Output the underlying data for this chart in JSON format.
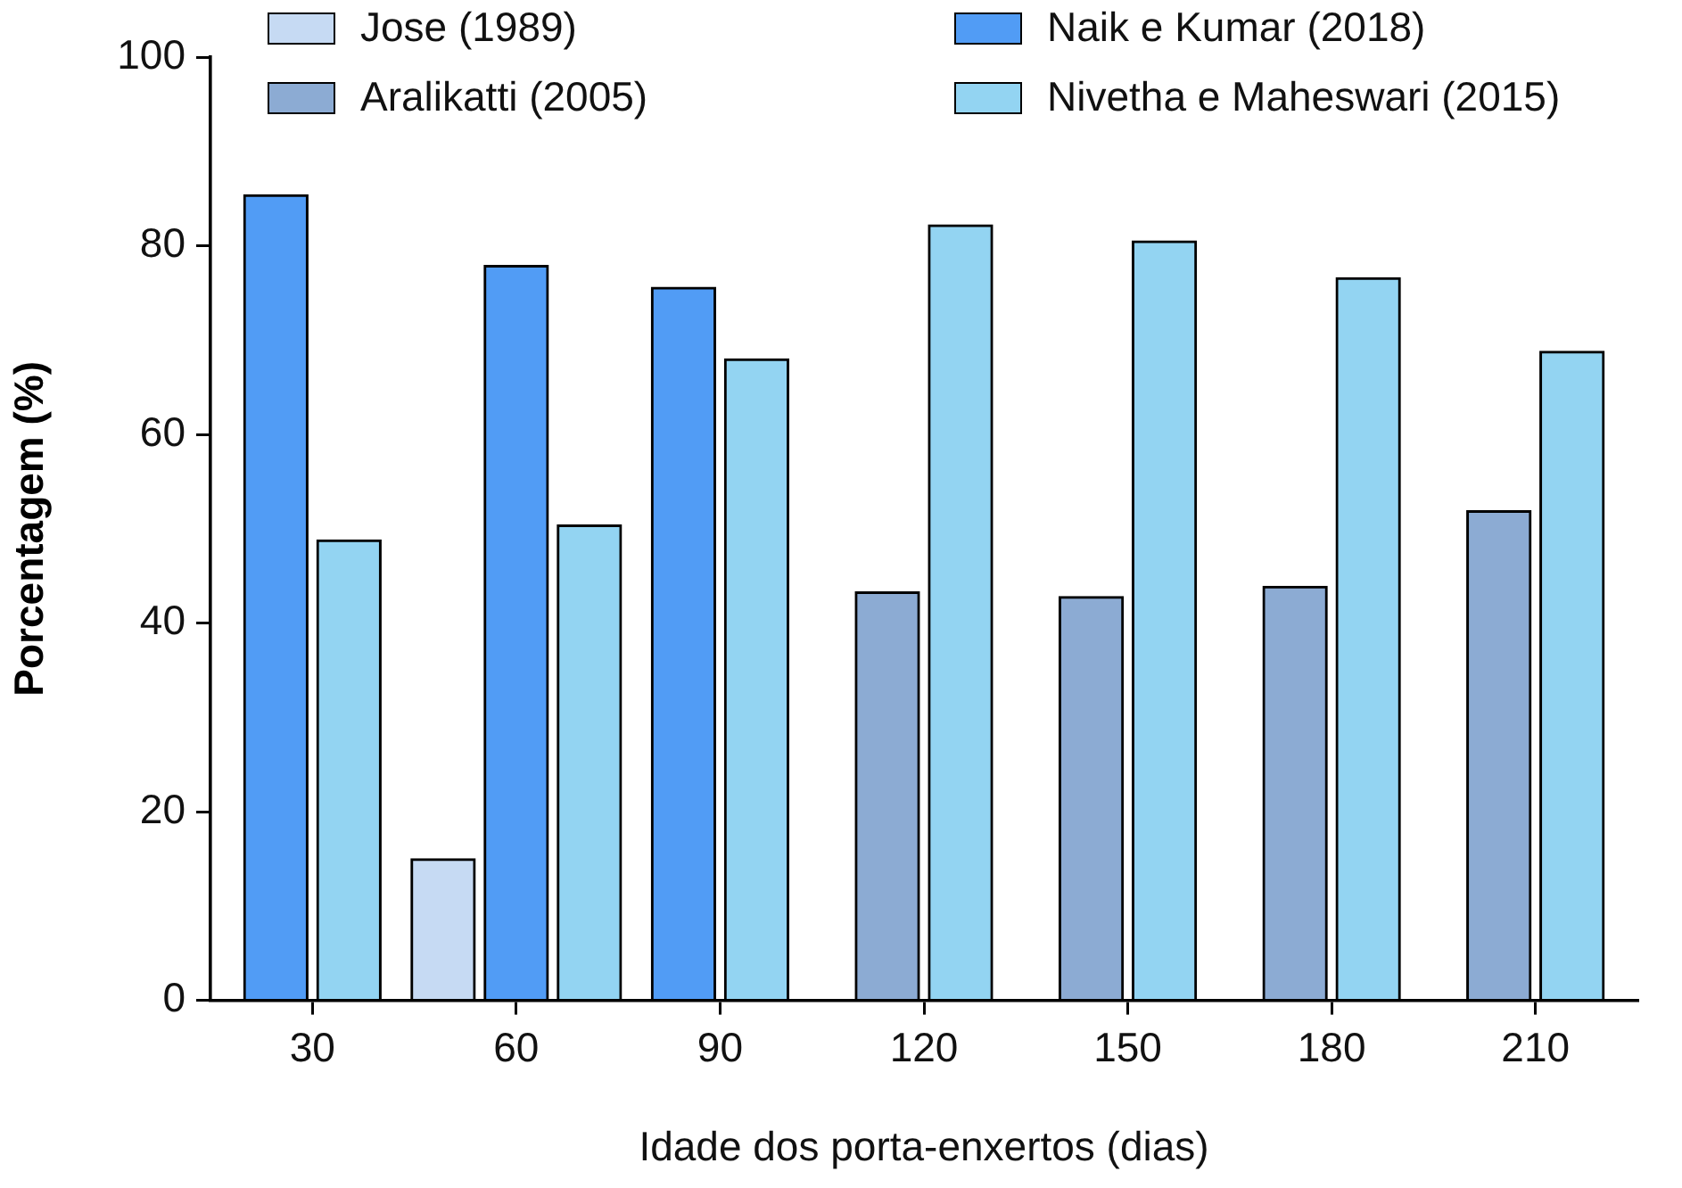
{
  "chart_data": {
    "type": "bar",
    "xlabel": "Idade dos porta-enxertos (dias)",
    "ylabel": "Porcentagem (%)",
    "categories": [
      "30",
      "60",
      "90",
      "120",
      "150",
      "180",
      "210"
    ],
    "series": [
      {
        "name": "Jose (1989)",
        "color": "#c6daf3",
        "values": [
          null,
          15,
          null,
          null,
          null,
          null,
          null
        ]
      },
      {
        "name": "Naik e Kumar (2018)",
        "color": "#519cf5",
        "values": [
          85.4,
          77.9,
          75.6,
          null,
          null,
          null,
          null
        ]
      },
      {
        "name": "Aralikatti (2005)",
        "color": "#8cabd3",
        "values": [
          null,
          null,
          null,
          43.3,
          42.8,
          43.9,
          51.9
        ]
      },
      {
        "name": "Nivetha e Maheswari (2015)",
        "color": "#93d4f2",
        "values": [
          48.8,
          50.4,
          68,
          82.2,
          80.5,
          76.6,
          68.8
        ]
      }
    ],
    "ylim": [
      0,
      100
    ],
    "yticks": [
      0,
      20,
      40,
      60,
      80,
      100
    ],
    "grid": false,
    "legend": "top"
  }
}
